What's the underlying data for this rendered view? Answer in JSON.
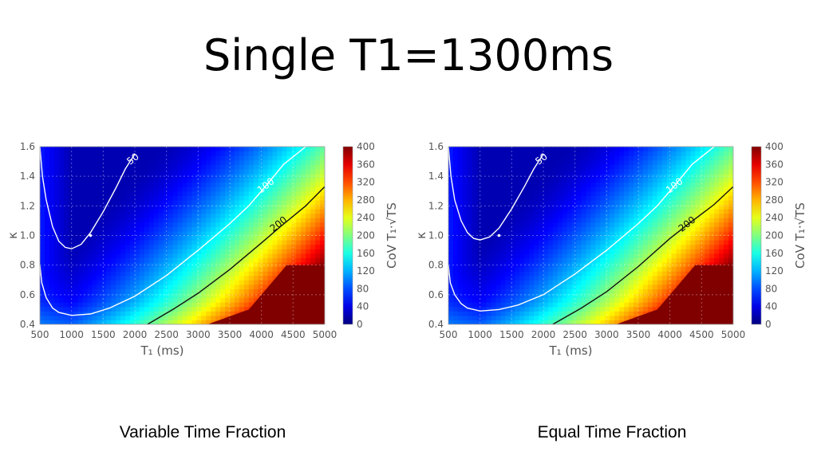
{
  "slide": {
    "title": "Single T1=1300ms",
    "captions": [
      "Variable Time Fraction",
      "Equal Time Fraction"
    ]
  },
  "chart_data": [
    {
      "type": "heatmap",
      "caption": "Variable Time Fraction",
      "xlabel": "T₁ (ms)",
      "ylabel": "κ",
      "xlim": [
        500,
        5000
      ],
      "ylim": [
        0.4,
        1.6
      ],
      "xticks": [
        500,
        1000,
        1500,
        2000,
        2500,
        3000,
        3500,
        4000,
        4500,
        5000
      ],
      "yticks": [
        0.4,
        0.6,
        0.8,
        1.0,
        1.2,
        1.4,
        1.6
      ],
      "colorbar": {
        "label": "CoV T₁·√TS",
        "range": [
          0,
          400
        ],
        "ticks": [
          0,
          40,
          80,
          120,
          160,
          200,
          240,
          280,
          320,
          360,
          400
        ],
        "colormap": "jet"
      },
      "marker": {
        "x": 1300,
        "y": 1.0,
        "color": "#ffffff"
      },
      "contours": [
        {
          "level": 50,
          "color": "#ffffff",
          "points": [
            [
              500,
              1.6
            ],
            [
              540,
              1.4
            ],
            [
              600,
              1.24
            ],
            [
              700,
              1.06
            ],
            [
              800,
              0.96
            ],
            [
              900,
              0.92
            ],
            [
              1000,
              0.91
            ],
            [
              1150,
              0.94
            ],
            [
              1300,
              1.02
            ],
            [
              1500,
              1.16
            ],
            [
              1700,
              1.32
            ],
            [
              1850,
              1.45
            ],
            [
              2000,
              1.55
            ]
          ]
        },
        {
          "level": 100,
          "color": "#ffffff",
          "points": [
            [
              500,
              0.8
            ],
            [
              530,
              0.68
            ],
            [
              600,
              0.58
            ],
            [
              700,
              0.51
            ],
            [
              800,
              0.48
            ],
            [
              1000,
              0.46
            ],
            [
              1300,
              0.47
            ],
            [
              1600,
              0.51
            ],
            [
              2000,
              0.59
            ],
            [
              2500,
              0.73
            ],
            [
              3000,
              0.9
            ],
            [
              3500,
              1.08
            ],
            [
              3800,
              1.2
            ],
            [
              4100,
              1.35
            ],
            [
              4350,
              1.48
            ],
            [
              4700,
              1.6
            ]
          ]
        },
        {
          "level": 200,
          "color": "#111111",
          "points": [
            [
              2200,
              0.4
            ],
            [
              2600,
              0.5
            ],
            [
              3000,
              0.61
            ],
            [
              3500,
              0.77
            ],
            [
              4000,
              0.95
            ],
            [
              4300,
              1.06
            ],
            [
              4700,
              1.2
            ],
            [
              5000,
              1.33
            ]
          ]
        }
      ]
    },
    {
      "type": "heatmap",
      "caption": "Equal Time Fraction",
      "xlabel": "T₁ (ms)",
      "ylabel": "κ",
      "xlim": [
        500,
        5000
      ],
      "ylim": [
        0.4,
        1.6
      ],
      "xticks": [
        500,
        1000,
        1500,
        2000,
        2500,
        3000,
        3500,
        4000,
        4500,
        5000
      ],
      "yticks": [
        0.4,
        0.6,
        0.8,
        1.0,
        1.2,
        1.4,
        1.6
      ],
      "colorbar": {
        "label": "CoV T₁·√TS",
        "range": [
          0,
          400
        ],
        "ticks": [
          0,
          40,
          80,
          120,
          160,
          200,
          240,
          280,
          320,
          360,
          400
        ],
        "colormap": "jet"
      },
      "marker": {
        "x": 1300,
        "y": 1.0,
        "color": "#ffffff"
      },
      "contours": [
        {
          "level": 50,
          "color": "#ffffff",
          "points": [
            [
              500,
              1.6
            ],
            [
              540,
              1.4
            ],
            [
              600,
              1.24
            ],
            [
              700,
              1.1
            ],
            [
              800,
              1.02
            ],
            [
              900,
              0.98
            ],
            [
              1000,
              0.97
            ],
            [
              1150,
              0.99
            ],
            [
              1300,
              1.05
            ],
            [
              1500,
              1.18
            ],
            [
              1700,
              1.33
            ],
            [
              1850,
              1.45
            ],
            [
              2000,
              1.55
            ]
          ]
        },
        {
          "level": 100,
          "color": "#ffffff",
          "points": [
            [
              500,
              0.8
            ],
            [
              530,
              0.68
            ],
            [
              600,
              0.6
            ],
            [
              700,
              0.54
            ],
            [
              800,
              0.51
            ],
            [
              1000,
              0.49
            ],
            [
              1300,
              0.5
            ],
            [
              1600,
              0.53
            ],
            [
              2000,
              0.6
            ],
            [
              2500,
              0.74
            ],
            [
              3000,
              0.9
            ],
            [
              3500,
              1.08
            ],
            [
              3800,
              1.2
            ],
            [
              4100,
              1.35
            ],
            [
              4350,
              1.48
            ],
            [
              4700,
              1.6
            ]
          ]
        },
        {
          "level": 200,
          "color": "#111111",
          "points": [
            [
              2150,
              0.4
            ],
            [
              2600,
              0.51
            ],
            [
              3000,
              0.62
            ],
            [
              3500,
              0.79
            ],
            [
              4000,
              0.98
            ],
            [
              4300,
              1.08
            ],
            [
              4700,
              1.21
            ],
            [
              5000,
              1.33
            ]
          ]
        }
      ]
    }
  ]
}
